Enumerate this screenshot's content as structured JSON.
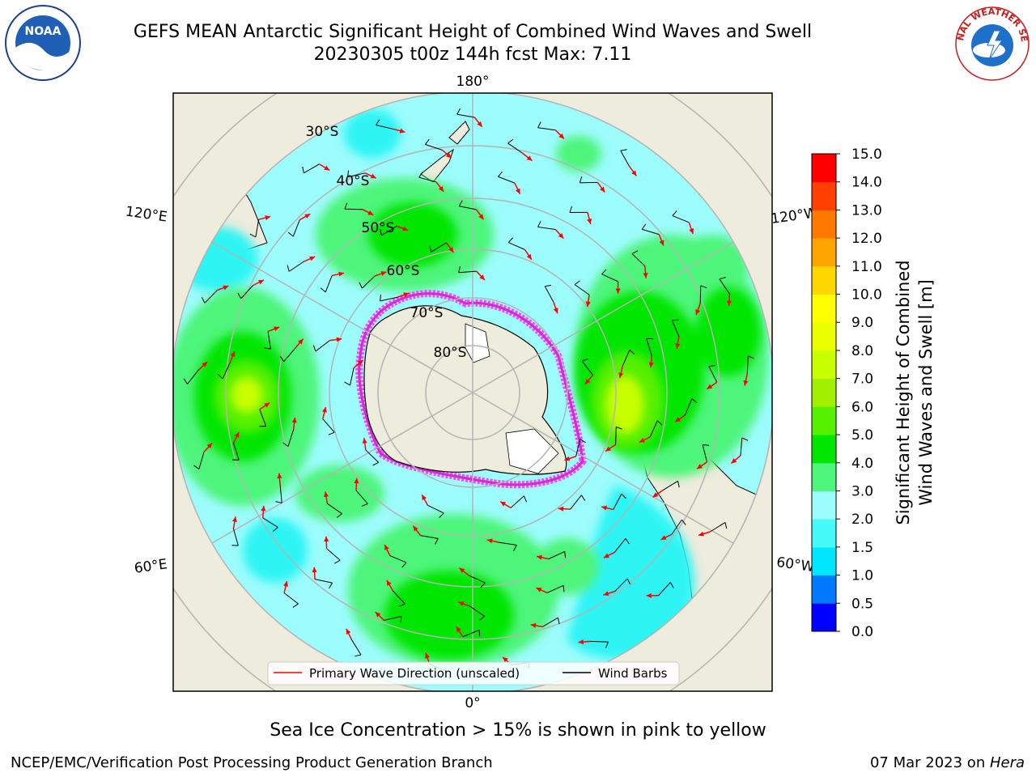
{
  "title": {
    "line1": "GEFS MEAN Antarctic Significant Height of Combined Wind Waves and Swell",
    "line2": "20230305 t00z 144h fcst   Max: 7.11"
  },
  "logos": {
    "noaa_text": "NOAA",
    "nws_ring": "NATIONAL WEATHER SERVICE",
    "noaa_icon": "noaa-logo-icon",
    "nws_icon": "nws-logo-icon"
  },
  "map": {
    "lon_labels": {
      "top": "180°",
      "bottom": "0°",
      "left_upper": "120°E",
      "left_lower": "60°E",
      "right_upper": "120°W",
      "right_lower": "60°W"
    },
    "lat_labels": [
      "30°S",
      "40°S",
      "50°S",
      "60°S",
      "70°S",
      "80°S"
    ],
    "colors": {
      "land": "#eeecdc",
      "ocean_base": "#9dfcfc",
      "grid": "#b4b4b4",
      "ice_pink": "#ff44ff",
      "ice_magenta": "#d42ad4",
      "ice_yellow": "#ffdd00",
      "arrow": "#ff0000",
      "barb": "#000000"
    }
  },
  "legend": {
    "items": [
      {
        "label": "Primary Wave Direction (unscaled)",
        "color": "#ff0000"
      },
      {
        "label": "Wind Barbs",
        "color": "#000000"
      }
    ]
  },
  "colorbar": {
    "label_line1": "Significant Height of Combined",
    "label_line2": "Wind Waves and Swell [m]",
    "ticks": [
      "0.0",
      "0.5",
      "1.0",
      "1.5",
      "2.0",
      "3.0",
      "4.0",
      "5.0",
      "6.0",
      "7.0",
      "8.0",
      "9.0",
      "10.0",
      "11.0",
      "12.0",
      "13.0",
      "14.0",
      "15.0"
    ],
    "colors": [
      "#0000ff",
      "#0078ff",
      "#00e6ff",
      "#46fafa",
      "#9dfcfc",
      "#4df57a",
      "#00e600",
      "#55f000",
      "#a0f000",
      "#c8ff00",
      "#eaff00",
      "#ffff00",
      "#ffd700",
      "#ffa500",
      "#ff7800",
      "#ff4000",
      "#ff0000"
    ]
  },
  "caption": "Sea Ice Concentration > 15% is shown in pink to yellow",
  "footer": {
    "left": "NCEP/EMC/Verification Post Processing Product Generation Branch",
    "right_prefix": "07 Mar 2023 on ",
    "right_host": "Hera"
  }
}
